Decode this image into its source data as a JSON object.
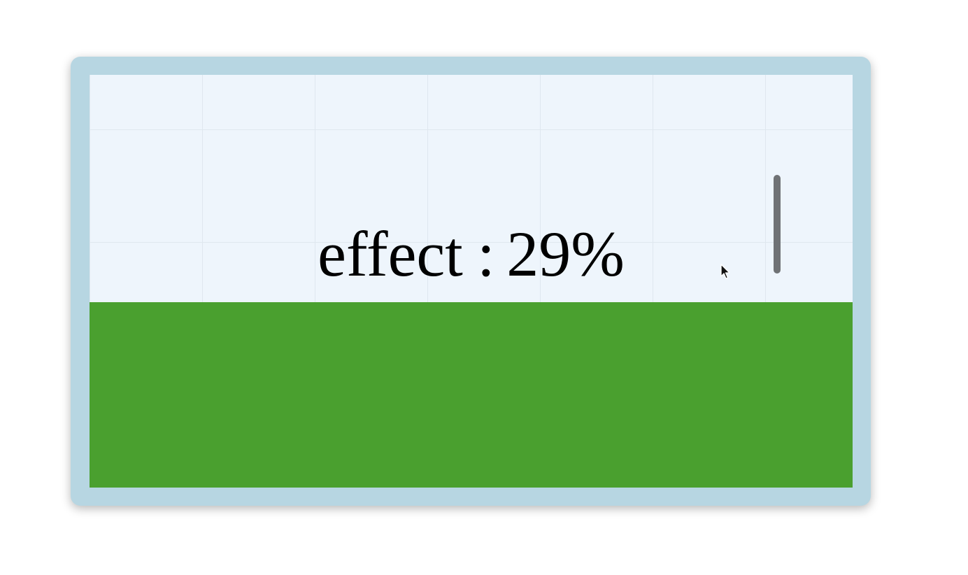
{
  "effect": {
    "name": "effect",
    "separator": ":",
    "value_text": "29%",
    "fill_fraction": 0.45
  },
  "colors": {
    "frame": "#b7d6e2",
    "background": "#eef5fc",
    "grid": "#dfe7ef",
    "fill": "#4aa02f",
    "text": "#000000",
    "scrollbar": "#6f7275"
  },
  "icons": {
    "cursor": "mouse-pointer-icon"
  }
}
